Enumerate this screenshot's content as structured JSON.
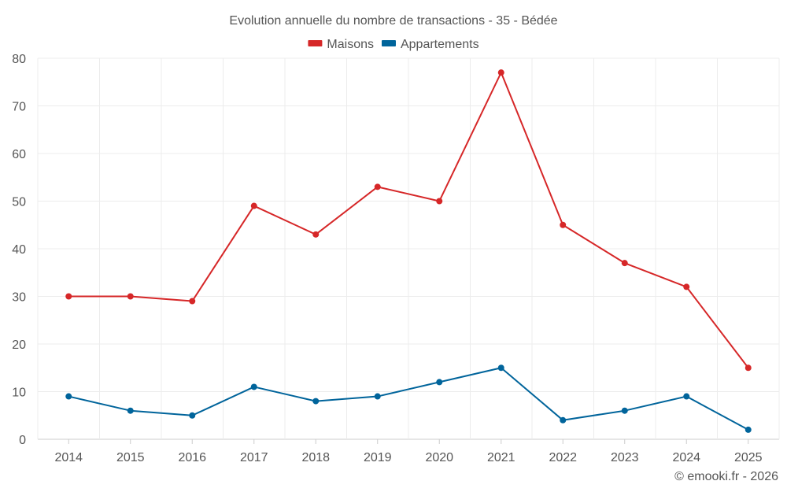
{
  "chart_data": {
    "type": "line",
    "title": "Evolution annuelle du nombre de transactions - 35 - Bédée",
    "categories": [
      "2014",
      "2015",
      "2016",
      "2017",
      "2018",
      "2019",
      "2020",
      "2021",
      "2022",
      "2023",
      "2024",
      "2025"
    ],
    "series": [
      {
        "name": "Maisons",
        "color": "#d62728",
        "values": [
          30,
          30,
          29,
          49,
          43,
          53,
          50,
          77,
          45,
          37,
          32,
          15
        ]
      },
      {
        "name": "Appartements",
        "color": "#00649b",
        "values": [
          9,
          6,
          5,
          11,
          8,
          9,
          12,
          15,
          4,
          6,
          9,
          2
        ]
      }
    ],
    "ylim": [
      0,
      80
    ],
    "yticks": [
      0,
      10,
      20,
      30,
      40,
      50,
      60,
      70,
      80
    ],
    "xlabel": "",
    "ylabel": "",
    "grid": true,
    "legend_position": "top-center"
  },
  "credit": "© emooki.fr - 2026"
}
